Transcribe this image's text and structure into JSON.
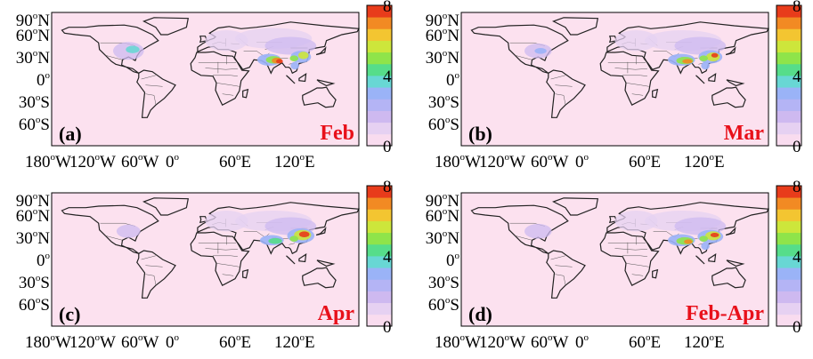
{
  "y_ticks": [
    {
      "deg": "90",
      "hemi": "N"
    },
    {
      "deg": "60",
      "hemi": "N"
    },
    {
      "deg": "30",
      "hemi": "N"
    },
    {
      "deg": "0",
      "hemi": ""
    },
    {
      "deg": "30",
      "hemi": "S"
    },
    {
      "deg": "60",
      "hemi": "S"
    }
  ],
  "x_ticks": [
    {
      "deg": "180",
      "hemi": "W"
    },
    {
      "deg": "120",
      "hemi": "W"
    },
    {
      "deg": "60",
      "hemi": "W"
    },
    {
      "deg": "0",
      "hemi": ""
    },
    {
      "deg": "60",
      "hemi": "E"
    },
    {
      "deg": "120",
      "hemi": "E"
    }
  ],
  "colorbar": {
    "ticks": [
      "8",
      "4",
      "0"
    ],
    "range": [
      0,
      8
    ],
    "colors": [
      "#f9dcef",
      "#e6d1f2",
      "#ceb9f0",
      "#b4b4f5",
      "#9ab3f7",
      "#68d7d4",
      "#56dd8a",
      "#8fe44a",
      "#cde63b",
      "#f3c531",
      "#f28a23",
      "#e83c1b"
    ]
  },
  "map": {
    "background_color": "#fce1ef"
  },
  "panels": [
    {
      "letter": "(a)",
      "month": "Feb"
    },
    {
      "letter": "(b)",
      "month": "Mar"
    },
    {
      "letter": "(c)",
      "month": "Apr"
    },
    {
      "letter": "(d)",
      "month": "Feb-Apr"
    }
  ]
}
